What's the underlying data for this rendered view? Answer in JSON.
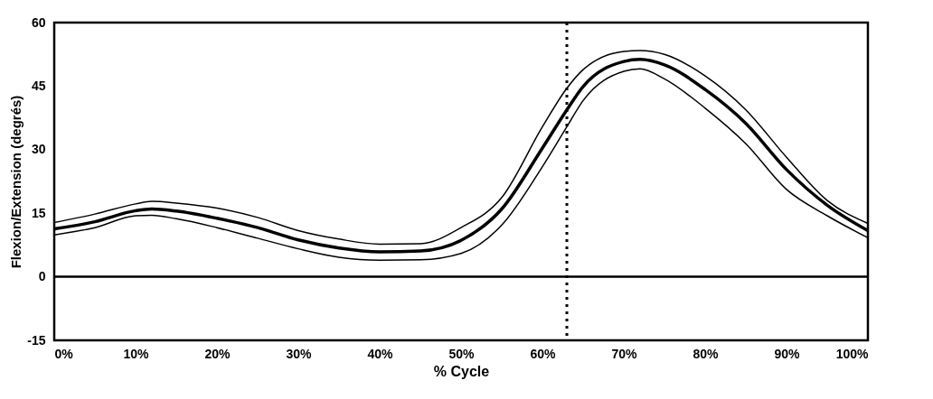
{
  "chart_data": {
    "type": "line",
    "xlabel": "% Cycle",
    "ylabel": "Flexion/Extension (degrés)",
    "x": [
      0,
      5,
      10,
      12,
      15,
      20,
      25,
      30,
      35,
      40,
      45,
      50,
      55,
      60,
      63,
      65,
      70,
      72,
      75,
      80,
      85,
      90,
      95,
      100
    ],
    "series": [
      {
        "color": "#000000",
        "values": [
          12.8,
          14.8,
          17.2,
          17.8,
          17.4,
          16.2,
          14,
          10.9,
          8.9,
          7.7,
          7.8,
          11.6,
          18.7,
          35.4,
          44.5,
          48.9,
          53.2,
          53.4,
          52.5,
          47.4,
          39.4,
          28.2,
          18,
          12.6
        ]
      },
      {
        "color": "#000000",
        "values": [
          11.3,
          13,
          15.6,
          16,
          15.5,
          13.8,
          11.6,
          8.7,
          6.8,
          5.9,
          6.1,
          8.6,
          16,
          30.4,
          39.4,
          44.9,
          50.8,
          51.3,
          50,
          44.2,
          36.2,
          25.3,
          16.9,
          10.9
        ]
      },
      {
        "color": "#000000",
        "values": [
          9.9,
          11.6,
          14.4,
          14.5,
          13.7,
          11.6,
          9.1,
          6.6,
          4.6,
          3.9,
          4,
          5.5,
          12.2,
          26,
          35.4,
          41.6,
          48.5,
          49.1,
          46.7,
          39.8,
          31.4,
          20.6,
          14.4,
          9.2
        ]
      }
    ],
    "xlim": [
      0,
      100
    ],
    "xticks": [
      {
        "value": 0,
        "label": "0%"
      },
      {
        "value": 10,
        "label": "10%"
      },
      {
        "value": 20,
        "label": "20%"
      },
      {
        "value": 30,
        "label": "30%"
      },
      {
        "value": 40,
        "label": "40%"
      },
      {
        "value": 50,
        "label": "50%"
      },
      {
        "value": 60,
        "label": "60%"
      },
      {
        "value": 70,
        "label": "70%"
      },
      {
        "value": 80,
        "label": "80%"
      },
      {
        "value": 90,
        "label": "90%"
      },
      {
        "value": 100,
        "label": "100%"
      }
    ],
    "ylim": [
      -15,
      60
    ],
    "yticks": [
      {
        "value": -15,
        "label": "-15"
      },
      0,
      15,
      30,
      45,
      60
    ],
    "ref_lines": [
      {
        "axis": "y",
        "value": 0,
        "color": "#000000",
        "line_style": "solid"
      },
      {
        "axis": "x",
        "value": 63,
        "color": "#000000",
        "line_style": "dotted"
      }
    ],
    "grid": false,
    "marker": "none",
    "line_style": "solid"
  }
}
